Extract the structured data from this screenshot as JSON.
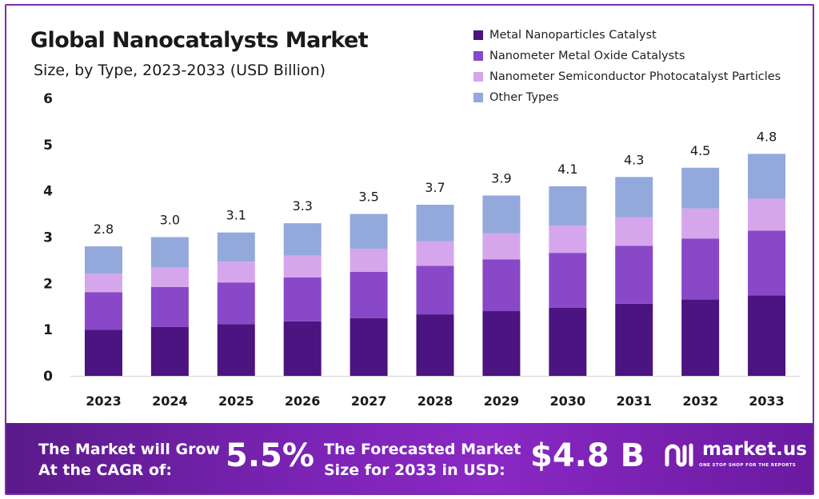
{
  "header": {
    "title": "Global Nanocatalysts Market",
    "subtitle": "Size, by Type, 2023-2033 (USD Billion)"
  },
  "chart_data": {
    "type": "bar",
    "stacked": true,
    "categories": [
      "2023",
      "2024",
      "2025",
      "2026",
      "2027",
      "2028",
      "2029",
      "2030",
      "2031",
      "2032",
      "2033"
    ],
    "series": [
      {
        "name": "Metal Nanoparticles Catalyst",
        "color": "#4b1480",
        "values": [
          1.0,
          1.06,
          1.12,
          1.18,
          1.25,
          1.33,
          1.4,
          1.47,
          1.56,
          1.65,
          1.74
        ]
      },
      {
        "name": "Nanometer Metal Oxide Catalysts",
        "color": "#8848c8",
        "values": [
          0.81,
          0.86,
          0.9,
          0.95,
          1.0,
          1.05,
          1.12,
          1.19,
          1.25,
          1.32,
          1.4
        ]
      },
      {
        "name": "Nanometer Semiconductor Photocatalyst Particles",
        "color": "#d6a6ec",
        "values": [
          0.4,
          0.42,
          0.45,
          0.47,
          0.5,
          0.53,
          0.56,
          0.59,
          0.62,
          0.65,
          0.69
        ]
      },
      {
        "name": "Other Types",
        "color": "#93a9dc",
        "values": [
          0.59,
          0.66,
          0.63,
          0.7,
          0.75,
          0.79,
          0.82,
          0.85,
          0.87,
          0.88,
          0.97
        ]
      }
    ],
    "totals": [
      "2.8",
      "3.0",
      "3.1",
      "3.3",
      "3.5",
      "3.7",
      "3.9",
      "4.1",
      "4.3",
      "4.5",
      "4.8"
    ],
    "yticks": [
      "0",
      "1",
      "2",
      "3",
      "4",
      "5",
      "6"
    ],
    "ylim": [
      0,
      6
    ],
    "xlabel": "",
    "ylabel": "",
    "grid": false,
    "legend_position": "top-right"
  },
  "banner": {
    "cagr_text": "The Market will Grow\nAt the CAGR of:",
    "cagr_value": "5.5%",
    "forecast_text": "The Forecasted Market\nSize for 2033 in USD:",
    "forecast_value": "$4.8 B",
    "logo_name": "market.us",
    "logo_tagline": "ONE STOP SHOP FOR THE REPORTS"
  }
}
